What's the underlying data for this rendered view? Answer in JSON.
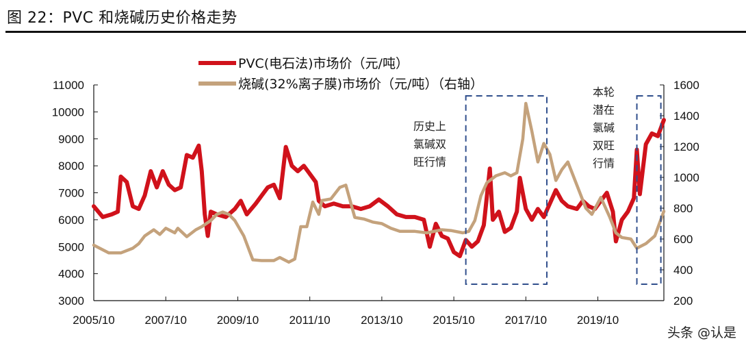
{
  "title": "图 22：PVC 和烧碱历史价格走势",
  "watermark": "头条 @认是",
  "chart_data": {
    "type": "line",
    "title": "",
    "legend_position": "top",
    "grid": false,
    "x_ticks": [
      "2005/10",
      "2007/10",
      "2009/10",
      "2011/10",
      "2013/10",
      "2015/10",
      "2017/10",
      "2019/10"
    ],
    "x_range": [
      "2005-10",
      "2021-08"
    ],
    "y_left": {
      "range": [
        3000,
        11000
      ],
      "ticks": [
        3000,
        4000,
        5000,
        6000,
        7000,
        8000,
        9000,
        10000,
        11000
      ]
    },
    "y_right": {
      "range": [
        200,
        1600
      ],
      "ticks": [
        200,
        400,
        600,
        800,
        1000,
        1200,
        1400,
        1600
      ]
    },
    "series": [
      {
        "name": "PVC(电石法)市场价（元/吨）",
        "axis": "left",
        "color": "#d0121b",
        "points": [
          [
            "2005-10",
            6500
          ],
          [
            "2006-01",
            6100
          ],
          [
            "2006-04",
            6200
          ],
          [
            "2006-06",
            6300
          ],
          [
            "2006-07",
            7600
          ],
          [
            "2006-09",
            7400
          ],
          [
            "2006-11",
            6500
          ],
          [
            "2007-01",
            6400
          ],
          [
            "2007-03",
            6900
          ],
          [
            "2007-05",
            7800
          ],
          [
            "2007-07",
            7200
          ],
          [
            "2007-09",
            7800
          ],
          [
            "2007-11",
            7300
          ],
          [
            "2008-01",
            7100
          ],
          [
            "2008-03",
            7200
          ],
          [
            "2008-05",
            8400
          ],
          [
            "2008-07",
            8300
          ],
          [
            "2008-09",
            8750
          ],
          [
            "2008-10",
            7800
          ],
          [
            "2008-11",
            6200
          ],
          [
            "2008-12",
            5400
          ],
          [
            "2009-01",
            6300
          ],
          [
            "2009-03",
            6200
          ],
          [
            "2009-06",
            6100
          ],
          [
            "2009-09",
            6400
          ],
          [
            "2009-11",
            6700
          ],
          [
            "2010-01",
            6200
          ],
          [
            "2010-04",
            6600
          ],
          [
            "2010-06",
            6900
          ],
          [
            "2010-08",
            7200
          ],
          [
            "2010-10",
            7300
          ],
          [
            "2010-12",
            6800
          ],
          [
            "2011-02",
            8700
          ],
          [
            "2011-04",
            8000
          ],
          [
            "2011-06",
            7800
          ],
          [
            "2011-08",
            8000
          ],
          [
            "2011-10",
            7700
          ],
          [
            "2011-12",
            7400
          ],
          [
            "2012-01",
            6700
          ],
          [
            "2012-03",
            6500
          ],
          [
            "2012-06",
            6600
          ],
          [
            "2012-09",
            6500
          ],
          [
            "2012-12",
            6500
          ],
          [
            "2013-03",
            6400
          ],
          [
            "2013-06",
            6500
          ],
          [
            "2013-09",
            6750
          ],
          [
            "2013-12",
            6500
          ],
          [
            "2014-03",
            6200
          ],
          [
            "2014-06",
            6100
          ],
          [
            "2014-09",
            6100
          ],
          [
            "2014-12",
            6000
          ],
          [
            "2015-02",
            5000
          ],
          [
            "2015-04",
            5850
          ],
          [
            "2015-06",
            5400
          ],
          [
            "2015-08",
            5300
          ],
          [
            "2015-10",
            4800
          ],
          [
            "2015-12",
            4650
          ],
          [
            "2016-02",
            5250
          ],
          [
            "2016-04",
            5000
          ],
          [
            "2016-06",
            5200
          ],
          [
            "2016-08",
            5800
          ],
          [
            "2016-10",
            7900
          ],
          [
            "2016-11",
            6000
          ],
          [
            "2017-01",
            6300
          ],
          [
            "2017-03",
            5550
          ],
          [
            "2017-05",
            5700
          ],
          [
            "2017-07",
            6300
          ],
          [
            "2017-08",
            7550
          ],
          [
            "2017-10",
            6400
          ],
          [
            "2017-12",
            6000
          ],
          [
            "2018-02",
            6400
          ],
          [
            "2018-04",
            6100
          ],
          [
            "2018-06",
            6600
          ],
          [
            "2018-08",
            7100
          ],
          [
            "2018-10",
            6700
          ],
          [
            "2018-12",
            6500
          ],
          [
            "2019-03",
            6400
          ],
          [
            "2019-05",
            6700
          ],
          [
            "2019-07",
            6500
          ],
          [
            "2019-09",
            6400
          ],
          [
            "2019-11",
            6700
          ],
          [
            "2020-01",
            7000
          ],
          [
            "2020-03",
            6300
          ],
          [
            "2020-04",
            5200
          ],
          [
            "2020-06",
            6000
          ],
          [
            "2020-08",
            6300
          ],
          [
            "2020-10",
            6800
          ],
          [
            "2020-11",
            8600
          ],
          [
            "2020-12",
            6950
          ],
          [
            "2021-02",
            8800
          ],
          [
            "2021-04",
            9200
          ],
          [
            "2021-06",
            9100
          ],
          [
            "2021-08",
            9700
          ]
        ]
      },
      {
        "name": "烧碱(32%离子膜)市场价（元/吨）（右轴）",
        "axis": "right",
        "color": "#c4a27c",
        "points": [
          [
            "2005-10",
            560
          ],
          [
            "2006-03",
            510
          ],
          [
            "2006-07",
            510
          ],
          [
            "2006-11",
            540
          ],
          [
            "2007-01",
            570
          ],
          [
            "2007-03",
            620
          ],
          [
            "2007-06",
            660
          ],
          [
            "2007-08",
            630
          ],
          [
            "2007-10",
            670
          ],
          [
            "2008-01",
            640
          ],
          [
            "2008-02",
            670
          ],
          [
            "2008-05",
            615
          ],
          [
            "2008-08",
            660
          ],
          [
            "2008-10",
            680
          ],
          [
            "2009-01",
            720
          ],
          [
            "2009-03",
            760
          ],
          [
            "2009-05",
            775
          ],
          [
            "2009-07",
            760
          ],
          [
            "2009-09",
            720
          ],
          [
            "2009-12",
            620
          ],
          [
            "2010-03",
            465
          ],
          [
            "2010-06",
            460
          ],
          [
            "2010-10",
            460
          ],
          [
            "2010-12",
            480
          ],
          [
            "2011-03",
            450
          ],
          [
            "2011-05",
            470
          ],
          [
            "2011-07",
            680
          ],
          [
            "2011-09",
            680
          ],
          [
            "2011-11",
            840
          ],
          [
            "2012-01",
            760
          ],
          [
            "2012-02",
            850
          ],
          [
            "2012-05",
            860
          ],
          [
            "2012-08",
            935
          ],
          [
            "2012-10",
            950
          ],
          [
            "2013-01",
            740
          ],
          [
            "2013-04",
            730
          ],
          [
            "2013-07",
            710
          ],
          [
            "2013-10",
            700
          ],
          [
            "2014-01",
            670
          ],
          [
            "2014-04",
            650
          ],
          [
            "2014-09",
            650
          ],
          [
            "2015-01",
            640
          ],
          [
            "2015-06",
            660
          ],
          [
            "2015-09",
            655
          ],
          [
            "2016-01",
            640
          ],
          [
            "2016-03",
            650
          ],
          [
            "2016-05",
            720
          ],
          [
            "2016-07",
            880
          ],
          [
            "2016-09",
            965
          ],
          [
            "2016-12",
            1010
          ],
          [
            "2017-03",
            1030
          ],
          [
            "2017-05",
            1010
          ],
          [
            "2017-07",
            1030
          ],
          [
            "2017-09",
            1250
          ],
          [
            "2017-10",
            1480
          ],
          [
            "2017-12",
            1300
          ],
          [
            "2018-02",
            1100
          ],
          [
            "2018-04",
            1220
          ],
          [
            "2018-06",
            1150
          ],
          [
            "2018-08",
            980
          ],
          [
            "2018-10",
            1050
          ],
          [
            "2018-12",
            1100
          ],
          [
            "2019-03",
            950
          ],
          [
            "2019-06",
            800
          ],
          [
            "2019-08",
            760
          ],
          [
            "2019-11",
            870
          ],
          [
            "2020-02",
            740
          ],
          [
            "2020-04",
            640
          ],
          [
            "2020-06",
            610
          ],
          [
            "2020-09",
            600
          ],
          [
            "2020-11",
            540
          ],
          [
            "2021-02",
            570
          ],
          [
            "2021-05",
            620
          ],
          [
            "2021-08",
            780
          ]
        ]
      }
    ],
    "annotations": [
      {
        "lines": [
          "历史上",
          "氯碱双",
          "旺行情"
        ],
        "box": [
          "2016-02",
          "2018-05"
        ]
      },
      {
        "lines": [
          "本轮",
          "潜在",
          "氯碱",
          "双旺",
          "行情"
        ],
        "box": [
          "2020-11",
          "2021-07"
        ]
      }
    ]
  }
}
